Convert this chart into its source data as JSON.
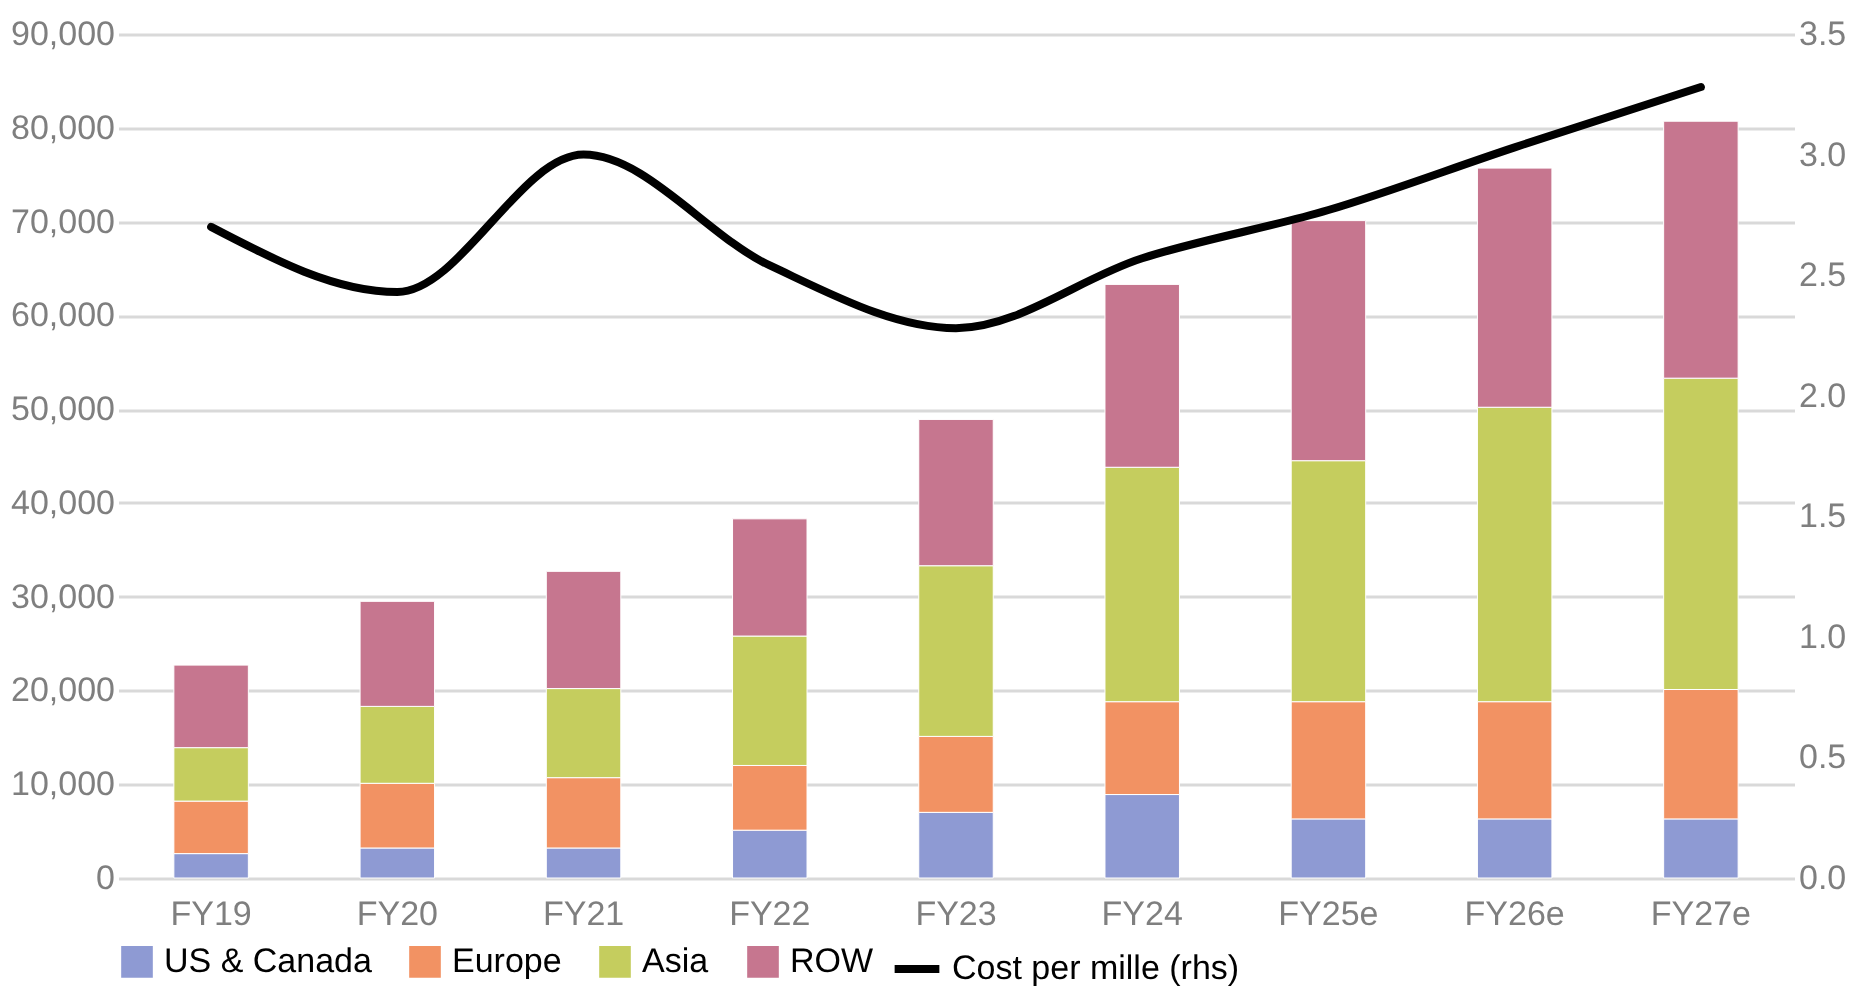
{
  "chart_data": {
    "type": "bar",
    "stacked": true,
    "categories": [
      "FY19",
      "FY20",
      "FY21",
      "FY22",
      "FY23",
      "FY24",
      "FY25e",
      "FY26e",
      "FY27e"
    ],
    "series": [
      {
        "name": "US & Canada",
        "color": "#8e9ad3",
        "values": [
          2600,
          3200,
          3200,
          5100,
          7000,
          8900,
          6300,
          6300,
          6300
        ]
      },
      {
        "name": "Europe",
        "color": "#f29263",
        "values": [
          5600,
          6900,
          7500,
          6900,
          8100,
          9900,
          12500,
          12500,
          13800
        ]
      },
      {
        "name": "Asia",
        "color": "#c5cd5e",
        "values": [
          5700,
          8200,
          9500,
          13800,
          18200,
          25000,
          25700,
          31400,
          33200
        ]
      },
      {
        "name": "ROW",
        "color": "#c6768f",
        "values": [
          8800,
          11200,
          12500,
          12500,
          15600,
          19500,
          25600,
          25500,
          27400
        ]
      },
      {
        "name": "Cost per mille (rhs)",
        "color": "#000000",
        "type": "line",
        "axis": "y2",
        "values": [
          2.7,
          2.43,
          3.0,
          2.54,
          2.28,
          2.57,
          2.77,
          3.03,
          3.28
        ]
      }
    ],
    "ylim": [
      0,
      90000
    ],
    "yticks": [
      {
        "value": 0,
        "label": "0"
      },
      {
        "value": 10000,
        "label": "10,000"
      },
      {
        "value": 20000,
        "label": "20,000"
      },
      {
        "value": 30000,
        "label": "30,000"
      },
      {
        "value": 40000,
        "label": "40,000"
      },
      {
        "value": 50000,
        "label": "50,000"
      },
      {
        "value": 60000,
        "label": "60,000"
      },
      {
        "value": 70000,
        "label": "70,000"
      },
      {
        "value": 80000,
        "label": "80,000"
      },
      {
        "value": 90000,
        "label": "90,000"
      }
    ],
    "y2lim": [
      0,
      3.5
    ],
    "y2ticks": [
      {
        "value": 0,
        "label": "0.0"
      },
      0.5,
      {
        "value": 1,
        "label": "1.0"
      },
      1.5,
      {
        "value": 2,
        "label": "2.0"
      },
      2.5,
      {
        "value": 3,
        "label": "3.0"
      },
      3.5
    ],
    "grid": "y",
    "legend": "bottom",
    "line_style": "solid",
    "marker": "none"
  }
}
